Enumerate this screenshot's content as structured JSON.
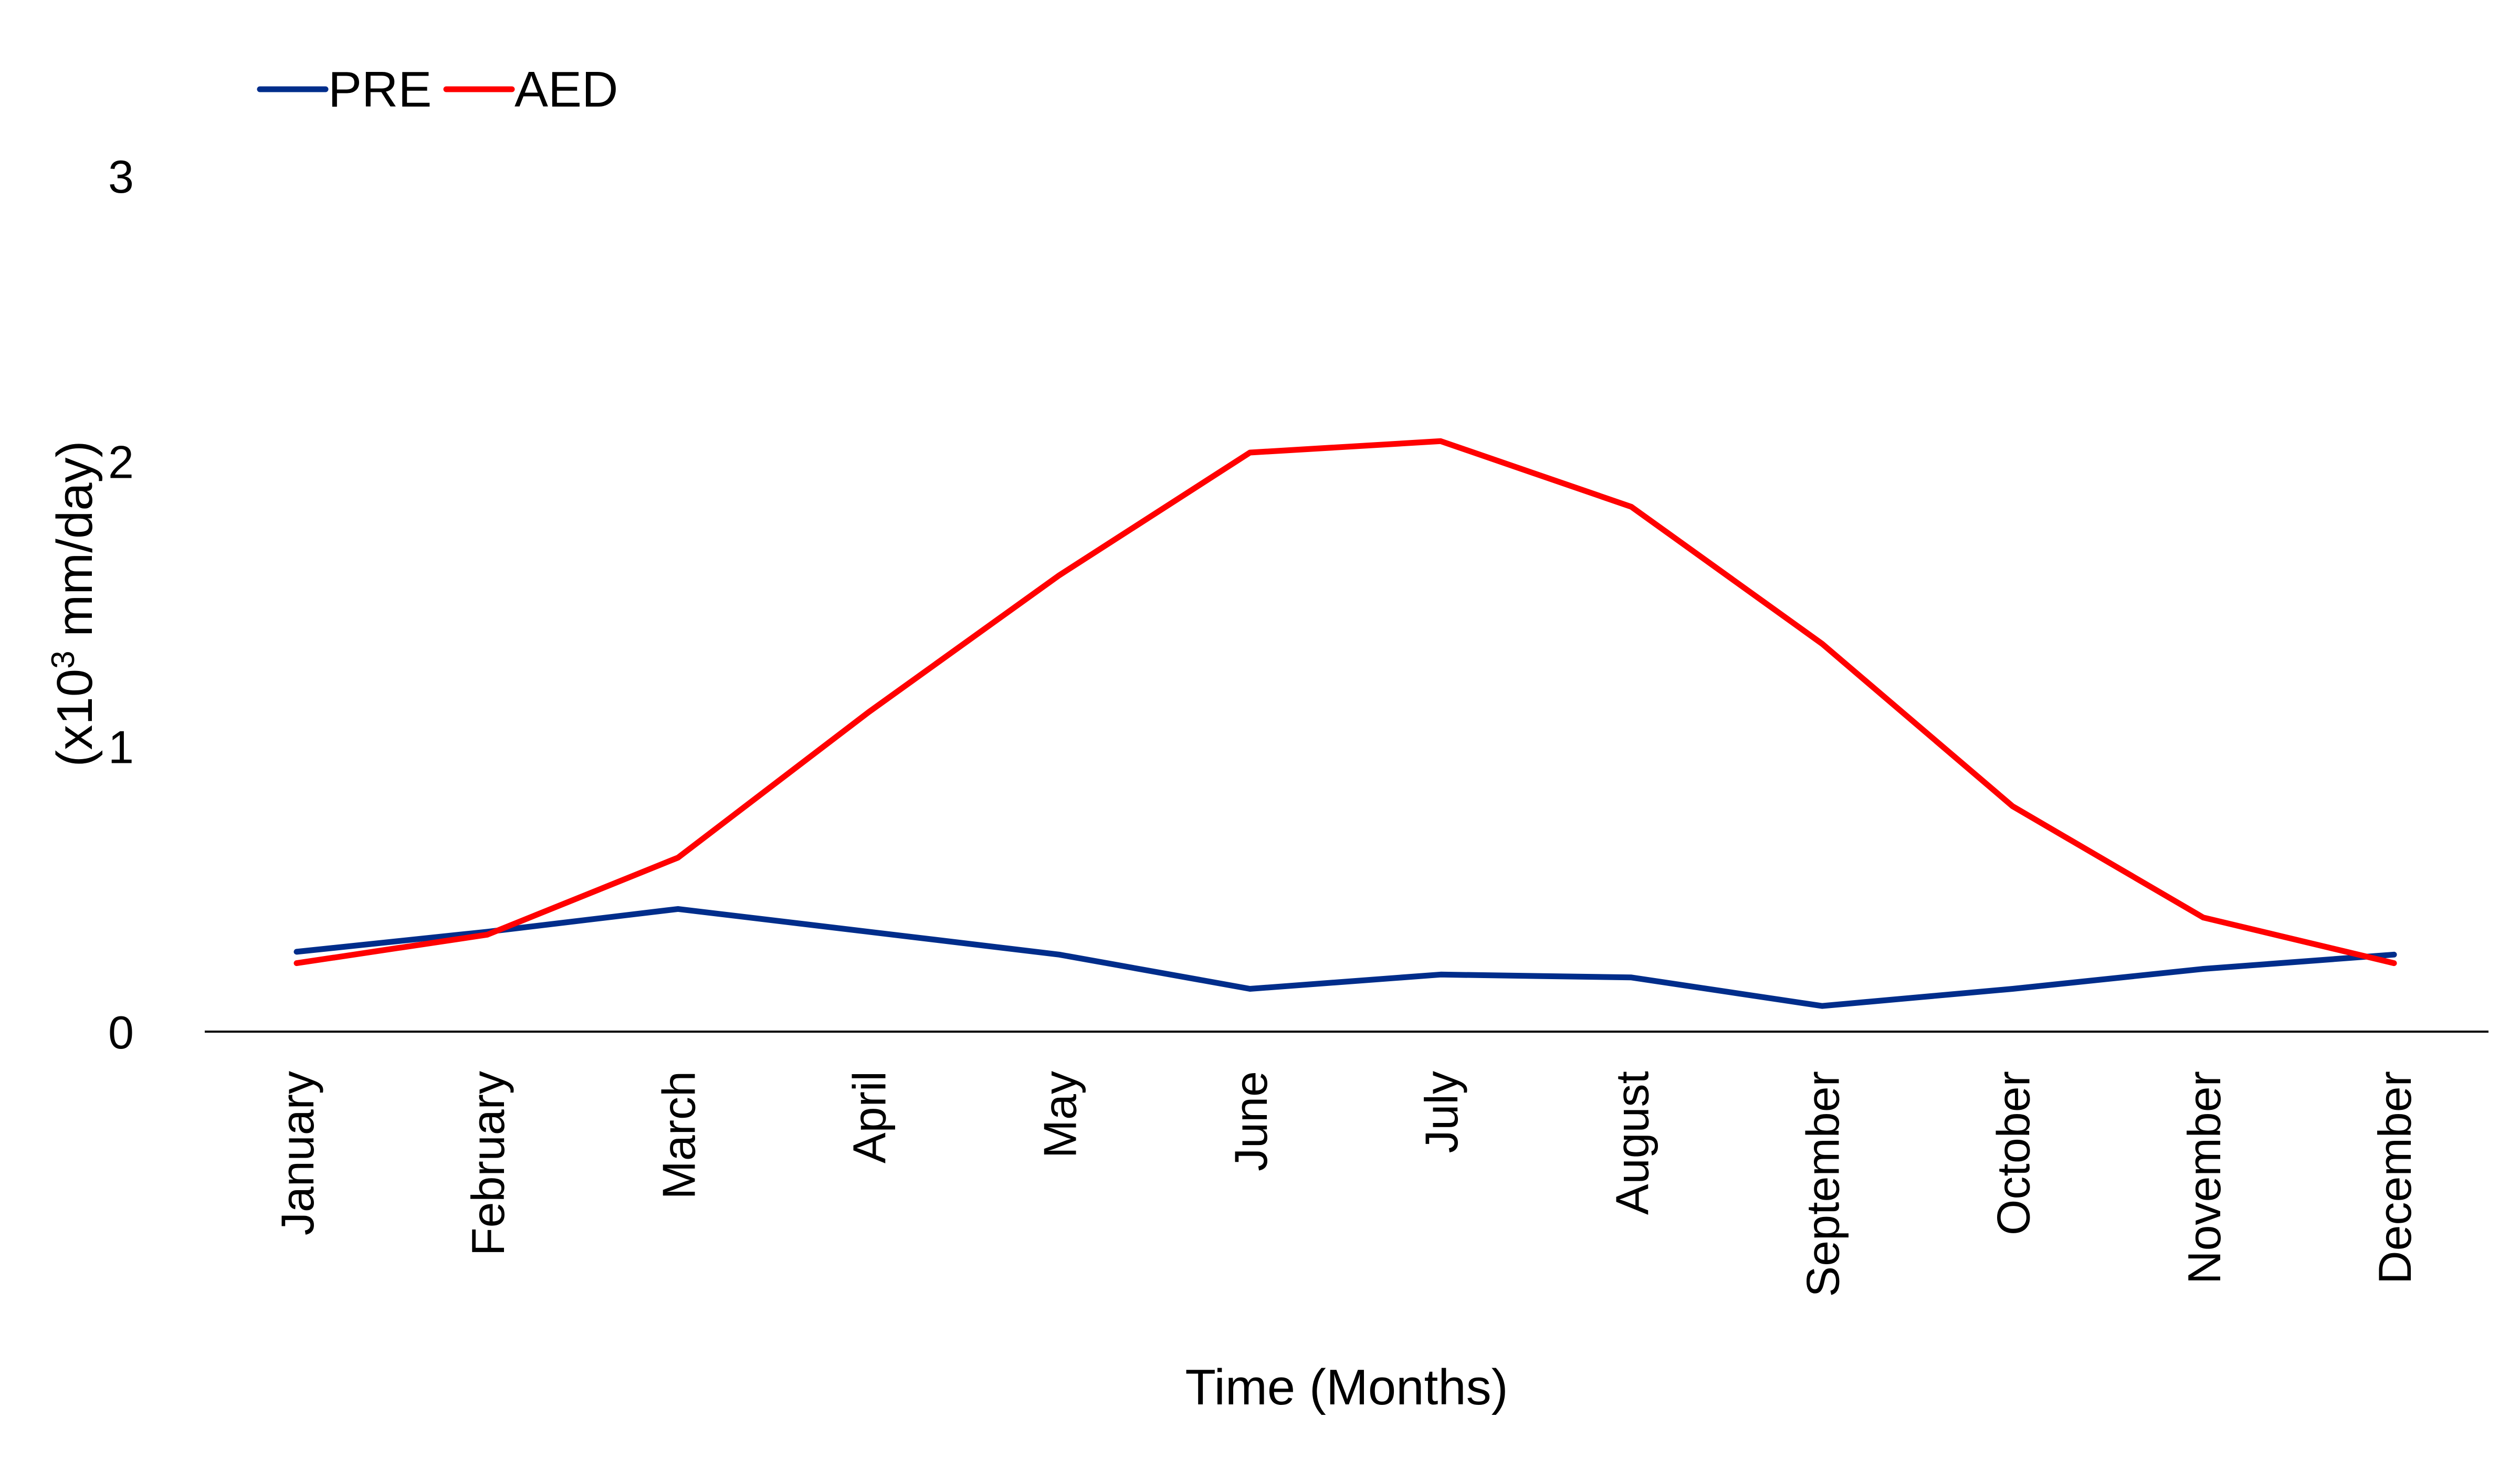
{
  "chart_data": {
    "type": "line",
    "title": "",
    "xlabel": "Time (Months)",
    "ylabel": {
      "prefix": "(x10",
      "superscript": "3",
      "suffix": " mm/day)"
    },
    "ylim": [
      0,
      3
    ],
    "yticks": [
      "0",
      "1",
      "2",
      "3"
    ],
    "grid": false,
    "legend_position": "top-left",
    "categories": [
      "January",
      "February",
      "March",
      "April",
      "May",
      "June",
      "July",
      "August",
      "September",
      "October",
      "November",
      "December"
    ],
    "series": [
      {
        "name": "PRE",
        "color": "#002D8B",
        "values": [
          0.28,
          0.35,
          0.43,
          0.35,
          0.27,
          0.15,
          0.2,
          0.19,
          0.09,
          0.15,
          0.22,
          0.27
        ]
      },
      {
        "name": "AED",
        "color": "#FF0000",
        "values": [
          0.24,
          0.34,
          0.61,
          1.12,
          1.6,
          2.03,
          2.07,
          1.84,
          1.36,
          0.79,
          0.4,
          0.24
        ]
      }
    ]
  }
}
